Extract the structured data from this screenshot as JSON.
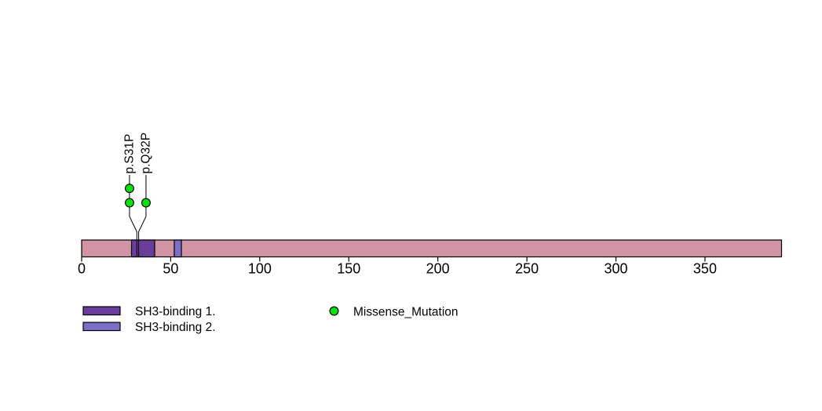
{
  "chart_data": {
    "type": "lollipop",
    "title": "",
    "xlabel": "",
    "background_color": "#ffffff",
    "axis": {
      "tick_values": [
        0,
        50,
        100,
        150,
        200,
        250,
        300,
        350
      ],
      "xlim": [
        0,
        393
      ],
      "grid": false
    },
    "protein": {
      "length_aa": 393,
      "bar_color": "#d294a5",
      "border_color": "#000000"
    },
    "domains": [
      {
        "label": "SH3-binding 1.",
        "start_aa": 28,
        "end_aa": 41,
        "color": "#6a3d9a"
      },
      {
        "label": "SH3-binding 2.",
        "start_aa": 52,
        "end_aa": 56,
        "color": "#7b6fc7"
      }
    ],
    "mutations": [
      {
        "label": "p.S31P",
        "position_aa": 31,
        "count": 2,
        "mutation_type": "Missense_Mutation"
      },
      {
        "label": "p.Q32P",
        "position_aa": 32,
        "count": 1,
        "mutation_type": "Missense_Mutation"
      }
    ],
    "mutation_types": [
      {
        "label": "Missense_Mutation",
        "color": "#0ce00c"
      }
    ],
    "legend_position": "bottom-left"
  }
}
